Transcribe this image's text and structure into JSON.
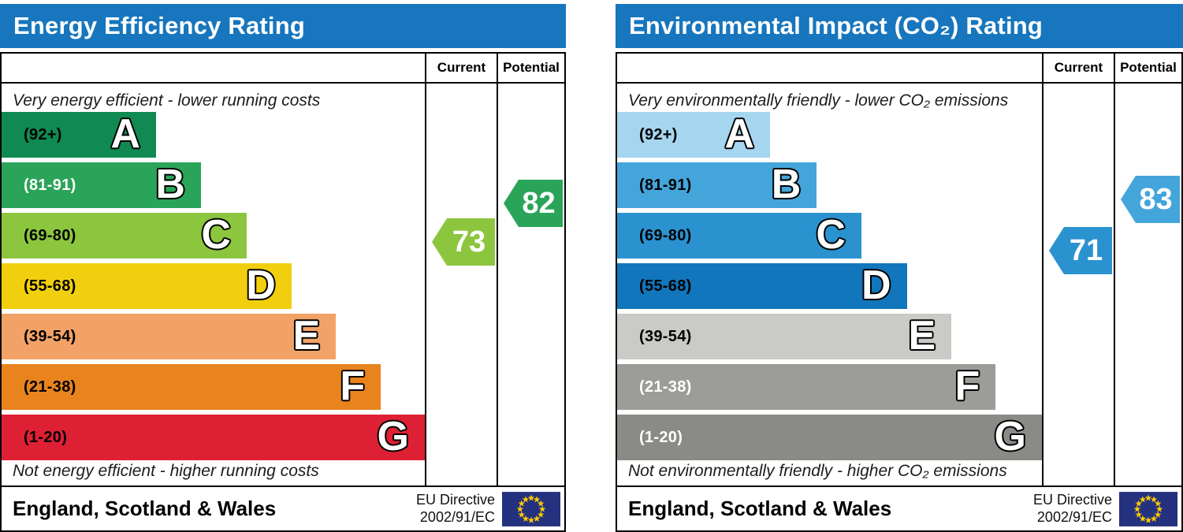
{
  "chart_data": [
    {
      "type": "bar",
      "title": "Energy Efficiency Rating",
      "categories": [
        "A (92+)",
        "B (81-91)",
        "C (69-80)",
        "D (55-68)",
        "E (39-54)",
        "F (21-38)",
        "G (1-20)"
      ],
      "band_colors": [
        "#108a52",
        "#2aa458",
        "#8cc63f",
        "#f1cf0f",
        "#f2a266",
        "#e8831e",
        "#de2035"
      ],
      "values": {
        "current": 73,
        "potential": 82
      },
      "current_band": "C",
      "potential_band": "B",
      "scale": [
        1,
        100
      ],
      "annotations": [
        "Very energy efficient - lower running costs",
        "Not energy efficient - higher running costs"
      ],
      "region": "England, Scotland & Wales",
      "directive": "EU Directive 2002/91/EC",
      "legend_position": "right-columns (Current / Potential)"
    },
    {
      "type": "bar",
      "title": "Environmental Impact (CO₂) Rating",
      "categories": [
        "A (92+)",
        "B (81-91)",
        "C (69-80)",
        "D (55-68)",
        "E (39-54)",
        "F (21-38)",
        "G (1-20)"
      ],
      "band_colors": [
        "#a6d5ef",
        "#44a5db",
        "#2b92d0",
        "#1176bc",
        "#cacac6",
        "#9c9c98",
        "#8a8a86"
      ],
      "values": {
        "current": 71,
        "potential": 83
      },
      "current_band": "C",
      "potential_band": "B",
      "scale": [
        1,
        100
      ],
      "annotations": [
        "Very environmentally friendly - lower CO₂ emissions",
        "Not environmentally friendly - higher CO₂ emissions"
      ],
      "region": "England, Scotland & Wales",
      "directive": "EU Directive 2002/91/EC",
      "legend_position": "right-columns (Current / Potential)"
    }
  ],
  "charts": [
    {
      "title": "Energy Efficiency Rating",
      "header_color": "#1776bd",
      "columns": {
        "current": "Current",
        "potential": "Potential"
      },
      "top_caption": "Very energy efficient - lower running costs",
      "bottom_caption": "Not energy efficient - higher running costs",
      "bands": [
        {
          "letter": "A",
          "range_label": "(92+)",
          "min": 92,
          "max": 100,
          "color": "#108a52",
          "label_color": "#000000",
          "width_pct": 36.5
        },
        {
          "letter": "B",
          "range_label": "(81-91)",
          "min": 81,
          "max": 91,
          "color": "#2aa458",
          "label_color": "#ffffff",
          "width_pct": 47.1
        },
        {
          "letter": "C",
          "range_label": "(69-80)",
          "min": 69,
          "max": 80,
          "color": "#8cc63f",
          "label_color": "#000000",
          "width_pct": 57.9
        },
        {
          "letter": "D",
          "range_label": "(55-68)",
          "min": 55,
          "max": 68,
          "color": "#f1cf0f",
          "label_color": "#000000",
          "width_pct": 68.5
        },
        {
          "letter": "E",
          "range_label": "(39-54)",
          "min": 39,
          "max": 54,
          "color": "#f2a266",
          "label_color": "#000000",
          "width_pct": 79.0
        },
        {
          "letter": "F",
          "range_label": "(21-38)",
          "min": 21,
          "max": 38,
          "color": "#e8831e",
          "label_color": "#000000",
          "width_pct": 89.6
        },
        {
          "letter": "G",
          "range_label": "(1-20)",
          "min": 1,
          "max": 20,
          "color": "#de2035",
          "label_color": "#000000",
          "width_pct": 100
        }
      ],
      "current": {
        "value": 73,
        "color": "#8cc63f"
      },
      "potential": {
        "value": 82,
        "color": "#2aa458"
      },
      "footer": {
        "region": "England, Scotland & Wales",
        "directive_line1": "EU Directive",
        "directive_line2": "2002/91/EC",
        "flag": {
          "background": "#24317e",
          "star_color": "#ffcc00"
        }
      }
    },
    {
      "title": "Environmental Impact (CO₂) Rating",
      "header_color": "#1776bd",
      "columns": {
        "current": "Current",
        "potential": "Potential"
      },
      "top_caption": "Very environmentally friendly - lower CO₂ emissions",
      "bottom_caption": "Not environmentally friendly - higher CO₂ emissions",
      "bands": [
        {
          "letter": "A",
          "range_label": "(92+)",
          "min": 92,
          "max": 100,
          "color": "#a6d5ef",
          "label_color": "#000000",
          "width_pct": 36.0
        },
        {
          "letter": "B",
          "range_label": "(81-91)",
          "min": 81,
          "max": 91,
          "color": "#44a5db",
          "label_color": "#000000",
          "width_pct": 47.0
        },
        {
          "letter": "C",
          "range_label": "(69-80)",
          "min": 69,
          "max": 80,
          "color": "#2b92d0",
          "label_color": "#000000",
          "width_pct": 57.5
        },
        {
          "letter": "D",
          "range_label": "(55-68)",
          "min": 55,
          "max": 68,
          "color": "#1176bc",
          "label_color": "#000000",
          "width_pct": 68.2
        },
        {
          "letter": "E",
          "range_label": "(39-54)",
          "min": 39,
          "max": 54,
          "color": "#cacac6",
          "label_color": "#000000",
          "width_pct": 78.7
        },
        {
          "letter": "F",
          "range_label": "(21-38)",
          "min": 21,
          "max": 38,
          "color": "#9c9c98",
          "label_color": "#ffffff",
          "width_pct": 89.1
        },
        {
          "letter": "G",
          "range_label": "(1-20)",
          "min": 1,
          "max": 20,
          "color": "#8a8a86",
          "label_color": "#ffffff",
          "width_pct": 100
        }
      ],
      "current": {
        "value": 71,
        "color": "#2b92d0"
      },
      "potential": {
        "value": 83,
        "color": "#44a5db"
      },
      "footer": {
        "region": "England, Scotland & Wales",
        "directive_line1": "EU Directive",
        "directive_line2": "2002/91/EC",
        "flag": {
          "background": "#24317e",
          "star_color": "#ffcc00"
        }
      }
    }
  ]
}
